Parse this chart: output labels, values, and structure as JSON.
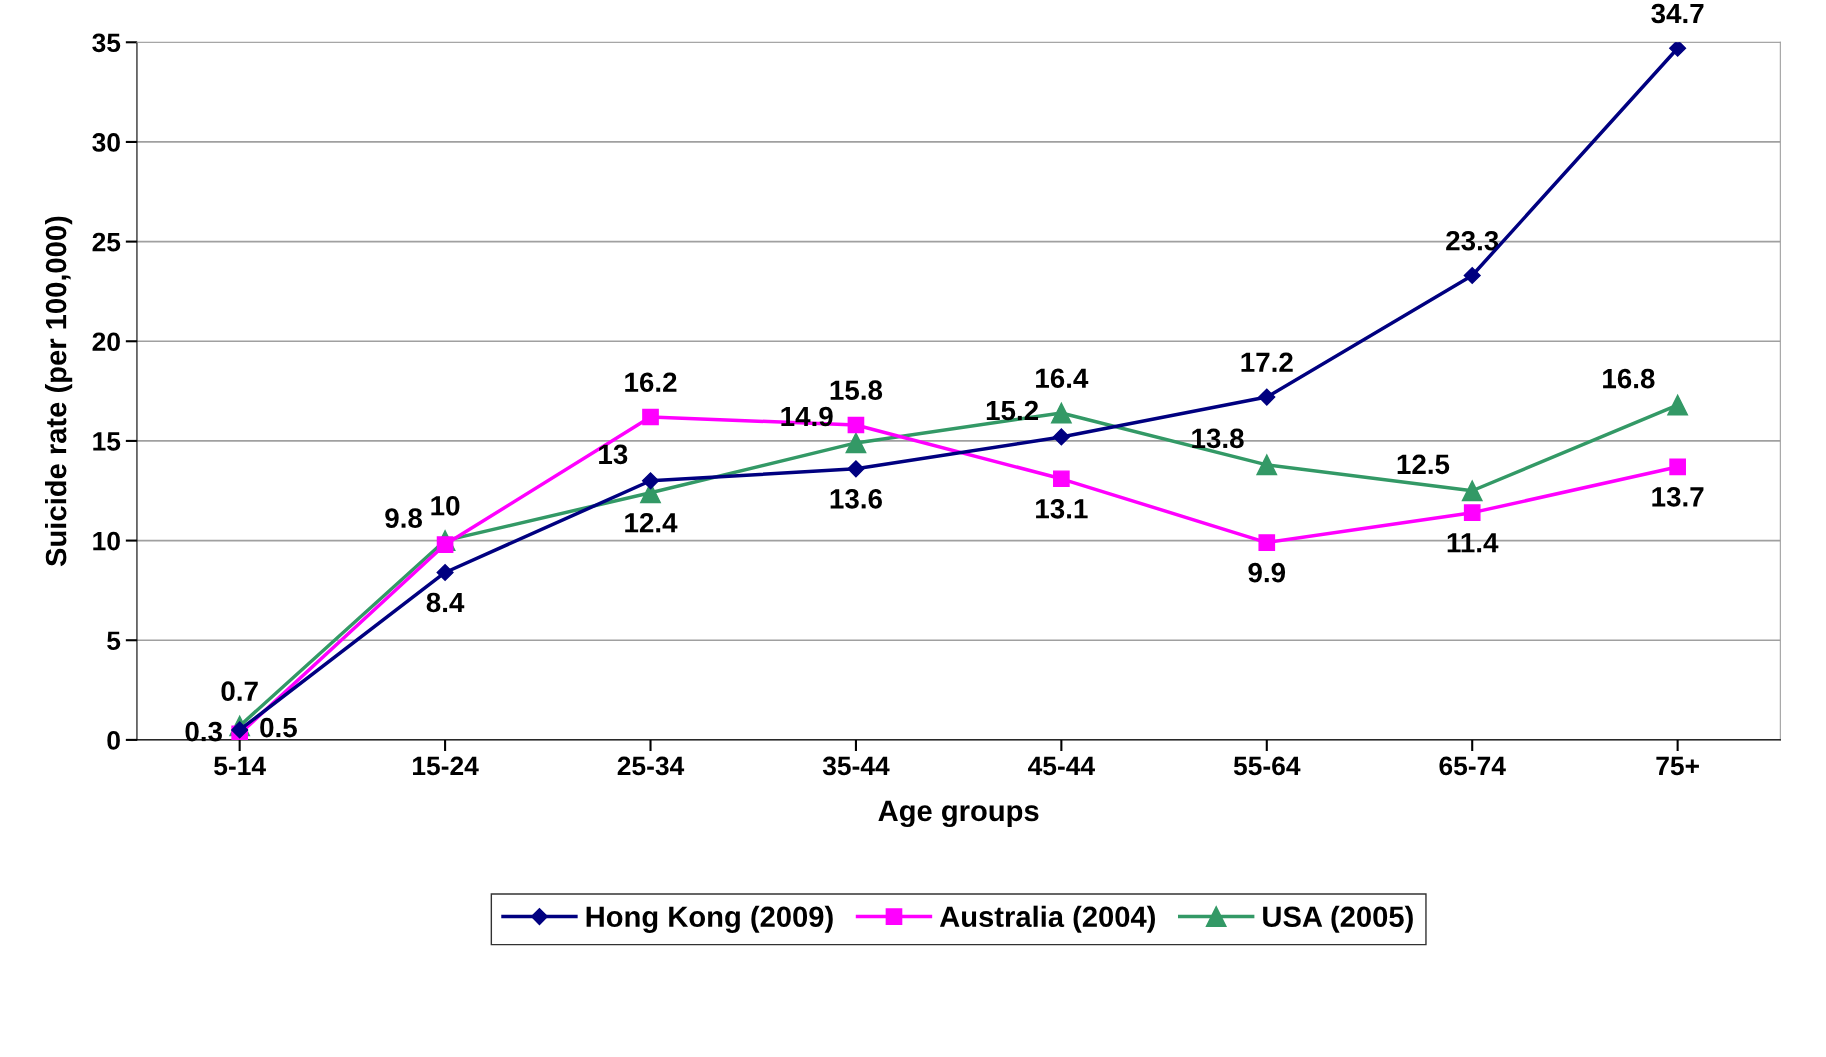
{
  "chart_data": {
    "type": "line",
    "xlabel": "Age groups",
    "ylabel": "Suicide rate (per 100,000)",
    "categories": [
      "5-14",
      "15-24",
      "25-34",
      "35-44",
      "45-44",
      "55-64",
      "65-74",
      "75+"
    ],
    "series": [
      {
        "name": "Hong Kong (2009)",
        "color": "#000080",
        "marker": "diamond",
        "values": [
          0.5,
          8.4,
          13,
          13.6,
          15.2,
          17.2,
          23.3,
          34.7
        ]
      },
      {
        "name": "Australia (2004)",
        "color": "#ff00ff",
        "marker": "square",
        "values": [
          0.3,
          9.8,
          16.2,
          15.8,
          13.1,
          9.9,
          11.4,
          13.7
        ]
      },
      {
        "name": "USA (2005)",
        "color": "#339966",
        "marker": "triangle",
        "values": [
          0.7,
          10,
          12.4,
          14.9,
          16.4,
          13.8,
          12.5,
          16.8
        ]
      }
    ],
    "ylim": [
      0,
      35
    ],
    "yticks": [
      0,
      5,
      10,
      15,
      20,
      25,
      30,
      35
    ],
    "grid": "y",
    "legend": "bottom",
    "data_labels": true,
    "line_style": "solid"
  }
}
